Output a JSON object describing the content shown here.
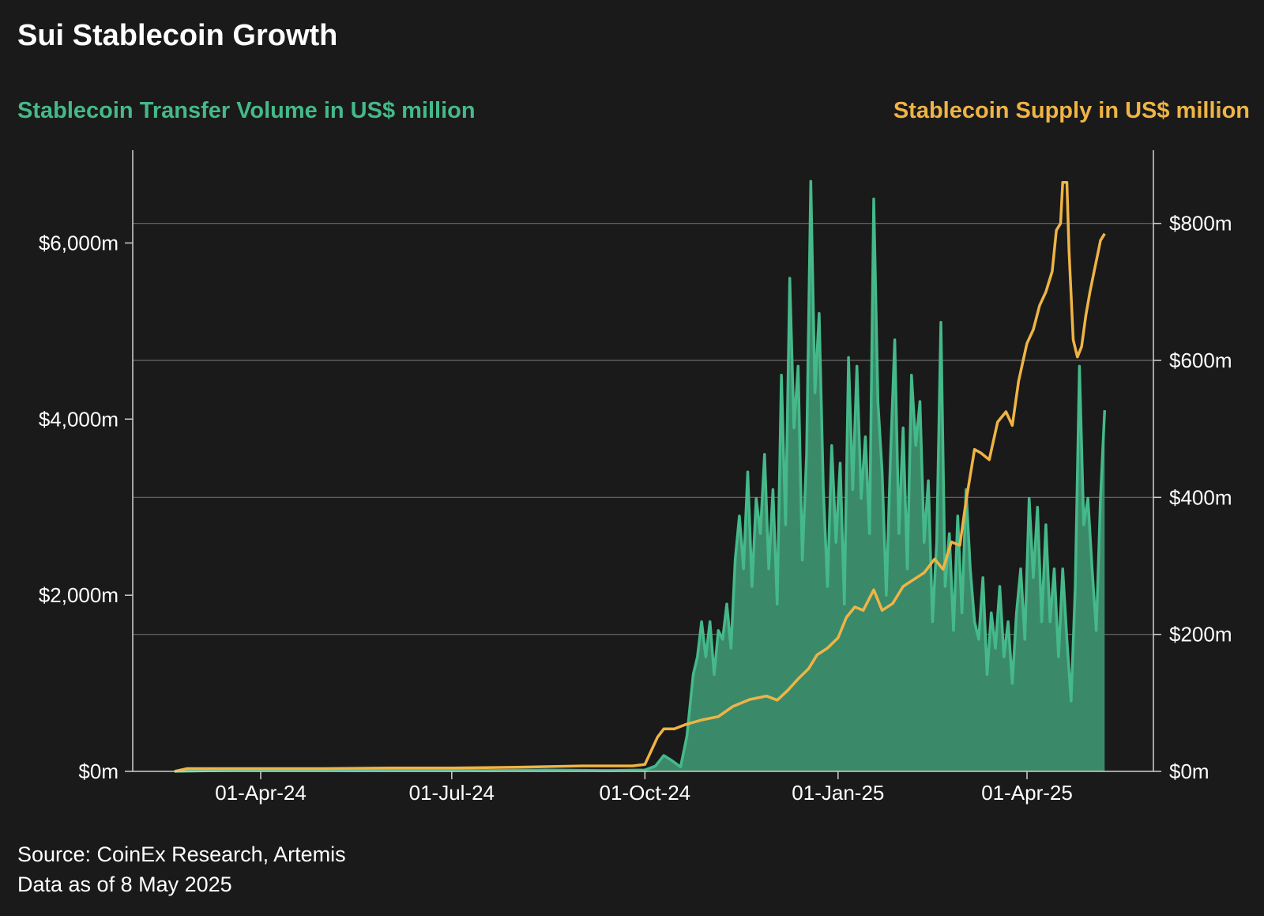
{
  "chart_data": {
    "type": "line",
    "title": "Sui Stablecoin Growth",
    "x_range": [
      "2024-02-20",
      "2025-05-08"
    ],
    "x_ticks": [
      {
        "label": "01-Apr-24",
        "date": "2024-04-01"
      },
      {
        "label": "01-Jul-24",
        "date": "2024-07-01"
      },
      {
        "label": "01-Oct-24",
        "date": "2024-10-01"
      },
      {
        "label": "01-Jan-25",
        "date": "2025-01-01"
      },
      {
        "label": "01-Apr-25",
        "date": "2025-04-01"
      }
    ],
    "y_left": {
      "label": "Stablecoin Transfer Volume in US$ million",
      "range": [
        0,
        7000
      ],
      "ticks": [
        0,
        2000,
        4000,
        6000
      ],
      "tick_labels": [
        "$0m",
        "$2,000m",
        "$4,000m",
        "$6,000m"
      ]
    },
    "y_right": {
      "label": "Stablecoin Supply in US$ million",
      "range": [
        0,
        900
      ],
      "ticks": [
        0,
        200,
        400,
        600,
        800
      ],
      "tick_labels": [
        "$0m",
        "$200m",
        "$400m",
        "$600m",
        "$800m"
      ]
    },
    "grid": "horizontal lines at right-axis ticks",
    "series": [
      {
        "axis": "left",
        "style": "area",
        "color": "#45b98a",
        "fill": "#3a8a6a",
        "points": [
          [
            "2024-02-20",
            0
          ],
          [
            "2024-03-15",
            10
          ],
          [
            "2024-04-15",
            15
          ],
          [
            "2024-05-15",
            10
          ],
          [
            "2024-06-15",
            15
          ],
          [
            "2024-07-15",
            10
          ],
          [
            "2024-08-15",
            15
          ],
          [
            "2024-09-15",
            10
          ],
          [
            "2024-10-01",
            15
          ],
          [
            "2024-10-06",
            60
          ],
          [
            "2024-10-10",
            180
          ],
          [
            "2024-10-14",
            120
          ],
          [
            "2024-10-18",
            50
          ],
          [
            "2024-10-21",
            400
          ],
          [
            "2024-10-24",
            1100
          ],
          [
            "2024-10-26",
            1300
          ],
          [
            "2024-10-28",
            1700
          ],
          [
            "2024-10-30",
            1300
          ],
          [
            "2024-11-01",
            1700
          ],
          [
            "2024-11-03",
            1100
          ],
          [
            "2024-11-05",
            1600
          ],
          [
            "2024-11-07",
            1500
          ],
          [
            "2024-11-09",
            1900
          ],
          [
            "2024-11-11",
            1400
          ],
          [
            "2024-11-13",
            2400
          ],
          [
            "2024-11-15",
            2900
          ],
          [
            "2024-11-17",
            2300
          ],
          [
            "2024-11-19",
            3400
          ],
          [
            "2024-11-21",
            2100
          ],
          [
            "2024-11-23",
            3100
          ],
          [
            "2024-11-25",
            2700
          ],
          [
            "2024-11-27",
            3600
          ],
          [
            "2024-11-29",
            2300
          ],
          [
            "2024-12-01",
            3200
          ],
          [
            "2024-12-03",
            1900
          ],
          [
            "2024-12-05",
            4500
          ],
          [
            "2024-12-07",
            2800
          ],
          [
            "2024-12-09",
            5600
          ],
          [
            "2024-12-11",
            3900
          ],
          [
            "2024-12-13",
            4600
          ],
          [
            "2024-12-15",
            2400
          ],
          [
            "2024-12-17",
            3600
          ],
          [
            "2024-12-19",
            6700
          ],
          [
            "2024-12-21",
            4300
          ],
          [
            "2024-12-23",
            5200
          ],
          [
            "2024-12-25",
            3200
          ],
          [
            "2024-12-27",
            2100
          ],
          [
            "2024-12-29",
            3700
          ],
          [
            "2024-12-31",
            2600
          ],
          [
            "2025-01-02",
            3500
          ],
          [
            "2025-01-04",
            1900
          ],
          [
            "2025-01-06",
            4700
          ],
          [
            "2025-01-08",
            3200
          ],
          [
            "2025-01-10",
            4600
          ],
          [
            "2025-01-12",
            3100
          ],
          [
            "2025-01-14",
            3800
          ],
          [
            "2025-01-16",
            2700
          ],
          [
            "2025-01-18",
            6500
          ],
          [
            "2025-01-20",
            4200
          ],
          [
            "2025-01-22",
            3400
          ],
          [
            "2025-01-24",
            2000
          ],
          [
            "2025-01-26",
            3600
          ],
          [
            "2025-01-28",
            4900
          ],
          [
            "2025-01-30",
            2700
          ],
          [
            "2025-02-01",
            3900
          ],
          [
            "2025-02-03",
            2300
          ],
          [
            "2025-02-05",
            4500
          ],
          [
            "2025-02-07",
            3700
          ],
          [
            "2025-02-09",
            4200
          ],
          [
            "2025-02-11",
            2600
          ],
          [
            "2025-02-13",
            3300
          ],
          [
            "2025-02-15",
            1700
          ],
          [
            "2025-02-17",
            2600
          ],
          [
            "2025-02-19",
            5100
          ],
          [
            "2025-02-21",
            2100
          ],
          [
            "2025-02-23",
            2700
          ],
          [
            "2025-02-25",
            1600
          ],
          [
            "2025-02-27",
            2900
          ],
          [
            "2025-03-01",
            1800
          ],
          [
            "2025-03-03",
            3200
          ],
          [
            "2025-03-05",
            2300
          ],
          [
            "2025-03-07",
            1700
          ],
          [
            "2025-03-09",
            1500
          ],
          [
            "2025-03-11",
            2200
          ],
          [
            "2025-03-13",
            1100
          ],
          [
            "2025-03-15",
            1800
          ],
          [
            "2025-03-17",
            1400
          ],
          [
            "2025-03-19",
            2100
          ],
          [
            "2025-03-21",
            1300
          ],
          [
            "2025-03-23",
            1700
          ],
          [
            "2025-03-25",
            1000
          ],
          [
            "2025-03-27",
            1800
          ],
          [
            "2025-03-29",
            2300
          ],
          [
            "2025-03-31",
            1500
          ],
          [
            "2025-04-02",
            3100
          ],
          [
            "2025-04-04",
            2200
          ],
          [
            "2025-04-06",
            3000
          ],
          [
            "2025-04-08",
            1700
          ],
          [
            "2025-04-10",
            2800
          ],
          [
            "2025-04-12",
            1700
          ],
          [
            "2025-04-14",
            2300
          ],
          [
            "2025-04-16",
            1300
          ],
          [
            "2025-04-18",
            2300
          ],
          [
            "2025-04-20",
            1500
          ],
          [
            "2025-04-22",
            800
          ],
          [
            "2025-04-24",
            2100
          ],
          [
            "2025-04-26",
            4600
          ],
          [
            "2025-04-28",
            2800
          ],
          [
            "2025-04-30",
            3100
          ],
          [
            "2025-05-02",
            2300
          ],
          [
            "2025-05-04",
            1600
          ],
          [
            "2025-05-06",
            3100
          ],
          [
            "2025-05-08",
            4100
          ]
        ]
      },
      {
        "axis": "right",
        "style": "line",
        "color": "#efb445",
        "points": [
          [
            "2024-02-20",
            0
          ],
          [
            "2024-02-26",
            4
          ],
          [
            "2024-04-01",
            4
          ],
          [
            "2024-05-01",
            4
          ],
          [
            "2024-06-01",
            5
          ],
          [
            "2024-07-01",
            5
          ],
          [
            "2024-08-01",
            6
          ],
          [
            "2024-09-01",
            8
          ],
          [
            "2024-09-25",
            8
          ],
          [
            "2024-10-01",
            10
          ],
          [
            "2024-10-04",
            30
          ],
          [
            "2024-10-07",
            50
          ],
          [
            "2024-10-10",
            62
          ],
          [
            "2024-10-15",
            62
          ],
          [
            "2024-10-20",
            68
          ],
          [
            "2024-10-28",
            75
          ],
          [
            "2024-11-05",
            80
          ],
          [
            "2024-11-12",
            95
          ],
          [
            "2024-11-20",
            105
          ],
          [
            "2024-11-28",
            110
          ],
          [
            "2024-12-03",
            104
          ],
          [
            "2024-12-08",
            118
          ],
          [
            "2024-12-13",
            135
          ],
          [
            "2024-12-18",
            150
          ],
          [
            "2024-12-22",
            170
          ],
          [
            "2024-12-27",
            180
          ],
          [
            "2025-01-01",
            195
          ],
          [
            "2025-01-05",
            225
          ],
          [
            "2025-01-09",
            240
          ],
          [
            "2025-01-13",
            235
          ],
          [
            "2025-01-18",
            265
          ],
          [
            "2025-01-22",
            235
          ],
          [
            "2025-01-27",
            245
          ],
          [
            "2025-02-01",
            270
          ],
          [
            "2025-02-06",
            280
          ],
          [
            "2025-02-11",
            290
          ],
          [
            "2025-02-16",
            310
          ],
          [
            "2025-02-20",
            295
          ],
          [
            "2025-02-24",
            335
          ],
          [
            "2025-02-28",
            330
          ],
          [
            "2025-03-03",
            395
          ],
          [
            "2025-03-07",
            470
          ],
          [
            "2025-03-10",
            465
          ],
          [
            "2025-03-14",
            455
          ],
          [
            "2025-03-18",
            510
          ],
          [
            "2025-03-22",
            525
          ],
          [
            "2025-03-25",
            505
          ],
          [
            "2025-03-28",
            570
          ],
          [
            "2025-04-01",
            625
          ],
          [
            "2025-04-04",
            645
          ],
          [
            "2025-04-07",
            680
          ],
          [
            "2025-04-10",
            700
          ],
          [
            "2025-04-13",
            730
          ],
          [
            "2025-04-15",
            790
          ],
          [
            "2025-04-17",
            800
          ],
          [
            "2025-04-18",
            860
          ],
          [
            "2025-04-20",
            860
          ],
          [
            "2025-04-21",
            760
          ],
          [
            "2025-04-23",
            630
          ],
          [
            "2025-04-25",
            605
          ],
          [
            "2025-04-27",
            620
          ],
          [
            "2025-04-29",
            665
          ],
          [
            "2025-05-01",
            700
          ],
          [
            "2025-05-03",
            730
          ],
          [
            "2025-05-05",
            760
          ],
          [
            "2025-05-06",
            775
          ],
          [
            "2025-05-08",
            785
          ]
        ]
      }
    ]
  },
  "labels": {
    "left_axis": "Stablecoin Transfer Volume in US$ million",
    "right_axis": "Stablecoin Supply in US$ million"
  },
  "footer": {
    "source": "Source: CoinEx Research, Artemis",
    "as_of": "Data as of 8 May 2025"
  }
}
